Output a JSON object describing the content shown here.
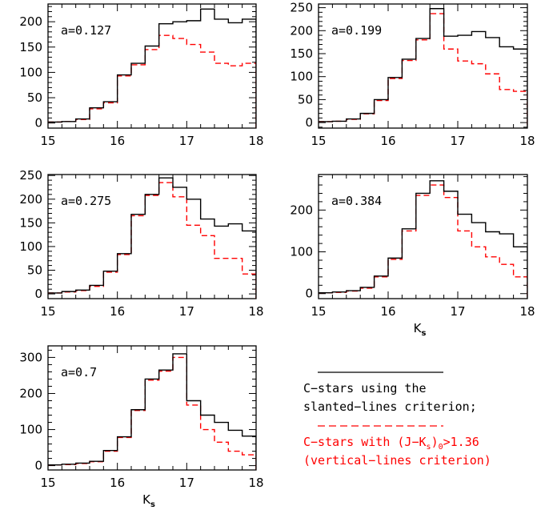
{
  "figure": {
    "legend": {
      "black_line_1": "C−stars using the",
      "black_line_2": "slanted−lines criterion;",
      "red_line_1": "C−stars with (J−K",
      "red_line_1_sub": "s",
      "red_line_1_close": ")",
      "red_line_1_sub2": "0",
      "red_line_1_tail": ">1.36",
      "red_line_2": "(vertical−lines criterion)",
      "black_color": "#000000",
      "red_color": "#ff0000",
      "placement": "bottom-right"
    }
  },
  "chart_data": [
    {
      "type": "histogram",
      "annotation": "a=0.127",
      "xlabel": "",
      "xlim": [
        15,
        18
      ],
      "ylim": [
        -10,
        235
      ],
      "xticks": [
        "15",
        "16",
        "17",
        "18"
      ],
      "yticks": [
        0,
        50,
        100,
        150,
        200
      ],
      "ytick_labels": [
        "0",
        "50",
        "100",
        "150",
        "200"
      ],
      "bin_edges": [
        15.0,
        15.2,
        15.4,
        15.6,
        15.8,
        16.0,
        16.2,
        16.4,
        16.6,
        16.8,
        17.0,
        17.2,
        17.4,
        17.6,
        17.8,
        18.0
      ],
      "series": [
        {
          "style": "solid",
          "color": "#000000",
          "values": [
            2,
            3,
            8,
            30,
            42,
            95,
            118,
            152,
            196,
            200,
            202,
            225,
            205,
            198,
            205
          ]
        },
        {
          "style": "dashed",
          "color": "#ff0000",
          "values": [
            2,
            3,
            7,
            28,
            40,
            93,
            115,
            145,
            173,
            167,
            155,
            140,
            118,
            113,
            118
          ]
        }
      ]
    },
    {
      "type": "histogram",
      "annotation": "a=0.199",
      "xlabel": "",
      "xlim": [
        15,
        18
      ],
      "ylim": [
        -12,
        258
      ],
      "xticks": [
        "15",
        "16",
        "17",
        "18"
      ],
      "yticks": [
        0,
        50,
        100,
        150,
        200,
        250
      ],
      "ytick_labels": [
        "0",
        "50",
        "100",
        "150",
        "200",
        "250"
      ],
      "bin_edges": [
        15.0,
        15.2,
        15.4,
        15.6,
        15.8,
        16.0,
        16.2,
        16.4,
        16.6,
        16.8,
        17.0,
        17.2,
        17.4,
        17.6,
        17.8,
        18.0
      ],
      "series": [
        {
          "style": "solid",
          "color": "#000000",
          "values": [
            2,
            3,
            8,
            20,
            50,
            98,
            138,
            183,
            248,
            188,
            190,
            198,
            185,
            165,
            160
          ]
        },
        {
          "style": "dashed",
          "color": "#ff0000",
          "values": [
            2,
            3,
            7,
            19,
            48,
            96,
            135,
            180,
            237,
            160,
            134,
            128,
            106,
            72,
            68
          ]
        }
      ]
    },
    {
      "type": "histogram",
      "annotation": "a=0.275",
      "xlabel": "",
      "xlim": [
        15,
        18
      ],
      "ylim": [
        -10,
        252
      ],
      "xticks": [
        "15",
        "16",
        "17",
        "18"
      ],
      "yticks": [
        0,
        50,
        100,
        150,
        200,
        250
      ],
      "ytick_labels": [
        "0",
        "50",
        "100",
        "150",
        "200",
        "250"
      ],
      "bin_edges": [
        15.0,
        15.2,
        15.4,
        15.6,
        15.8,
        16.0,
        16.2,
        16.4,
        16.6,
        16.8,
        17.0,
        17.2,
        17.4,
        17.6,
        17.8,
        18.0
      ],
      "series": [
        {
          "style": "solid",
          "color": "#000000",
          "values": [
            2,
            5,
            8,
            18,
            48,
            85,
            168,
            210,
            245,
            225,
            200,
            158,
            143,
            148,
            133
          ]
        },
        {
          "style": "dashed",
          "color": "#ff0000",
          "values": [
            2,
            4,
            7,
            16,
            46,
            83,
            165,
            208,
            235,
            205,
            145,
            123,
            75,
            75,
            42
          ]
        }
      ]
    },
    {
      "type": "histogram",
      "annotation": "a=0.384",
      "xlabel": "K_s",
      "xlabel_main": "K",
      "xlabel_sub": "s",
      "xlim": [
        15,
        18
      ],
      "ylim": [
        -12,
        285
      ],
      "xticks": [
        "15",
        "16",
        "17",
        "18"
      ],
      "yticks": [
        0,
        100,
        200
      ],
      "ytick_labels": [
        "0",
        "100",
        "200"
      ],
      "bin_edges": [
        15.0,
        15.2,
        15.4,
        15.6,
        15.8,
        16.0,
        16.2,
        16.4,
        16.6,
        16.8,
        17.0,
        17.2,
        17.4,
        17.6,
        17.8,
        18.0
      ],
      "series": [
        {
          "style": "solid",
          "color": "#000000",
          "values": [
            2,
            4,
            7,
            15,
            42,
            85,
            155,
            240,
            270,
            245,
            190,
            170,
            148,
            143,
            112
          ]
        },
        {
          "style": "dashed",
          "color": "#ff0000",
          "values": [
            2,
            3,
            6,
            13,
            40,
            82,
            150,
            235,
            260,
            230,
            150,
            112,
            88,
            70,
            40
          ]
        }
      ]
    },
    {
      "type": "histogram",
      "annotation": "a=0.7",
      "xlabel": "K_s",
      "xlabel_main": "K",
      "xlabel_sub": "s",
      "xlim": [
        15,
        18
      ],
      "ylim": [
        -12,
        332
      ],
      "xticks": [
        "15",
        "16",
        "17",
        "18"
      ],
      "yticks": [
        0,
        100,
        200,
        300
      ],
      "ytick_labels": [
        "0",
        "100",
        "200",
        "300"
      ],
      "bin_edges": [
        15.0,
        15.2,
        15.4,
        15.6,
        15.8,
        16.0,
        16.2,
        16.4,
        16.6,
        16.8,
        17.0,
        17.2,
        17.4,
        17.6,
        17.8,
        18.0
      ],
      "series": [
        {
          "style": "solid",
          "color": "#000000",
          "values": [
            2,
            4,
            7,
            12,
            42,
            80,
            155,
            240,
            265,
            310,
            180,
            140,
            120,
            98,
            82
          ]
        },
        {
          "style": "dashed",
          "color": "#ff0000",
          "values": [
            2,
            3,
            6,
            11,
            40,
            78,
            153,
            237,
            262,
            300,
            168,
            100,
            65,
            40,
            30
          ]
        }
      ]
    }
  ]
}
